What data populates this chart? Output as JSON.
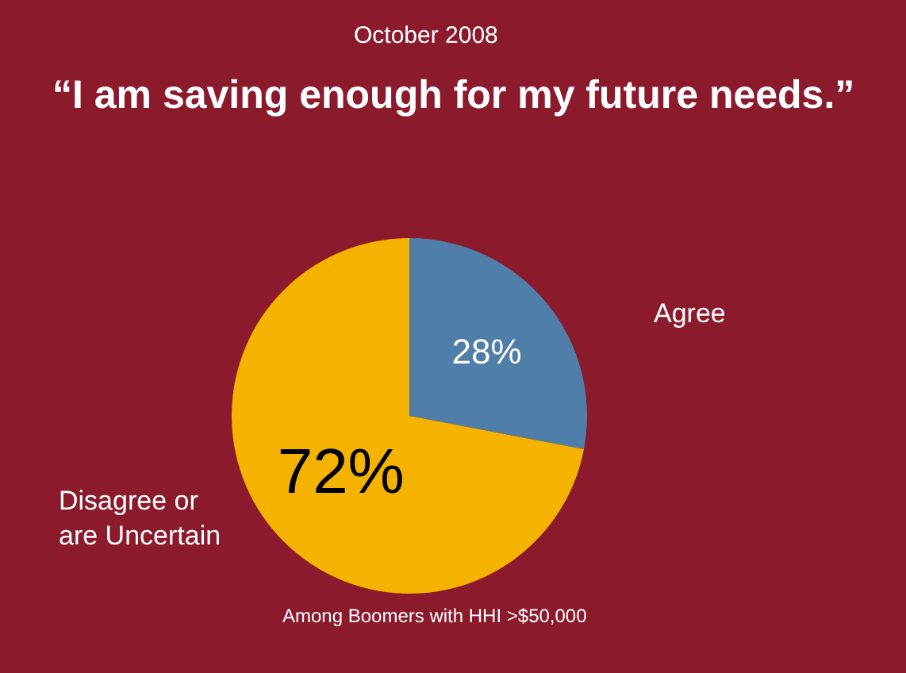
{
  "chart_data": {
    "type": "pie",
    "title": "“I am saving enough for my future needs.”",
    "subtitle": "October 2008",
    "categories": [
      "Agree",
      "Disagree or are Uncertain"
    ],
    "values": [
      28,
      72
    ],
    "value_labels": [
      "28%",
      "72%"
    ],
    "colors": [
      "#4f7ea8",
      "#f5b300"
    ],
    "annotations": [
      "Among Boomers with HHI >$50,000"
    ]
  }
}
